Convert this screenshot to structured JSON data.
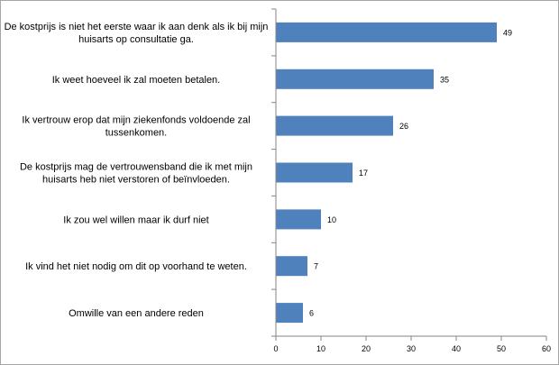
{
  "chart_data": {
    "type": "bar",
    "orientation": "horizontal",
    "categories": [
      [
        "De kostprijs is niet het eerste waar ik aan denk als ik bij mijn",
        "huisarts op consultatie ga."
      ],
      [
        "Ik weet hoeveel ik zal moeten betalen."
      ],
      [
        "Ik vertrouw erop dat mijn ziekenfonds voldoende zal",
        "tussenkomen."
      ],
      [
        "De kostprijs mag de vertrouwensband die ik met mijn",
        "huisarts heb niet verstoren of beïnvloeden."
      ],
      [
        "Ik zou wel willen maar ik durf niet"
      ],
      [
        "Ik vind het niet nodig om dit op voorhand te weten."
      ],
      [
        "Omwille van een andere reden"
      ]
    ],
    "values": [
      49,
      35,
      26,
      17,
      10,
      7,
      6
    ],
    "data_labels": [
      "49",
      "35",
      "26",
      "17",
      "10",
      "7",
      "6"
    ],
    "xlim": [
      0,
      60
    ],
    "xticks": [
      "0",
      "10",
      "20",
      "30",
      "40",
      "50",
      "60"
    ],
    "grid": false,
    "legend": "none",
    "bar_color": "#4f81bd",
    "axis_color": "#868686"
  }
}
